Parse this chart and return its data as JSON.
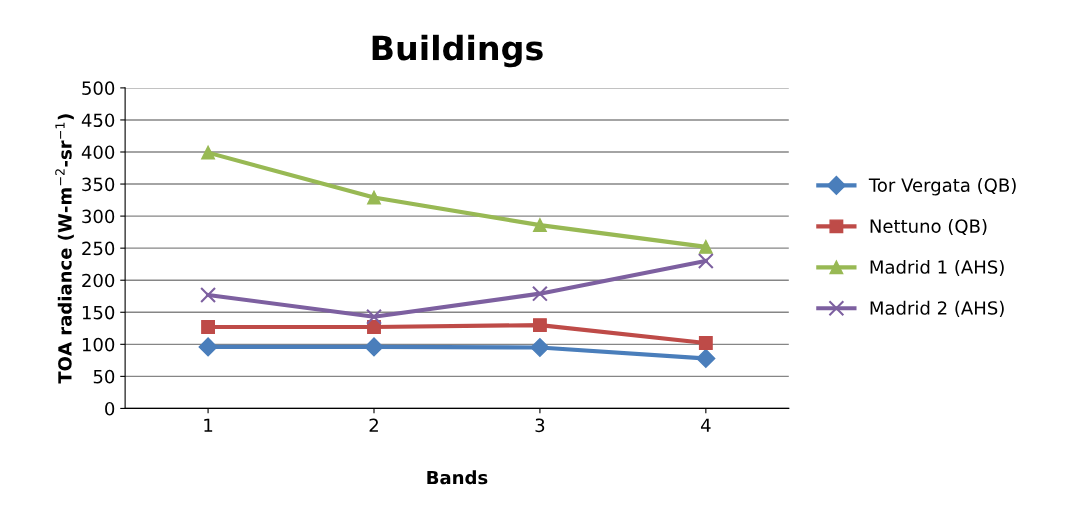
{
  "chart_data": {
    "type": "line",
    "title": "Buildings",
    "xlabel": "Bands",
    "ylabel": "TOA radiance (W-m$^{−2}$-sr$^{−1}$)",
    "categories": [
      "1",
      "2",
      "3",
      "4"
    ],
    "series": [
      {
        "name": "Tor Vergata (QB)",
        "color": "#4a7ebb",
        "marker": "diamond",
        "values": [
          96,
          96,
          95,
          78
        ]
      },
      {
        "name": "Nettuno (QB)",
        "color": "#be4b48",
        "marker": "square",
        "values": [
          127,
          127,
          130,
          102
        ]
      },
      {
        "name": "Madrid 1 (AHS)",
        "color": "#98b954",
        "marker": "triangle",
        "values": [
          399,
          329,
          286,
          252
        ]
      },
      {
        "name": "Madrid 2 (AHS)",
        "color": "#7d60a0",
        "marker": "cross",
        "values": [
          177,
          143,
          179,
          230
        ]
      }
    ],
    "ylim": [
      0,
      500
    ],
    "yticks": [
      0,
      50,
      100,
      150,
      200,
      250,
      300,
      350,
      400,
      450,
      500
    ],
    "grid": "y",
    "legend": "right"
  }
}
